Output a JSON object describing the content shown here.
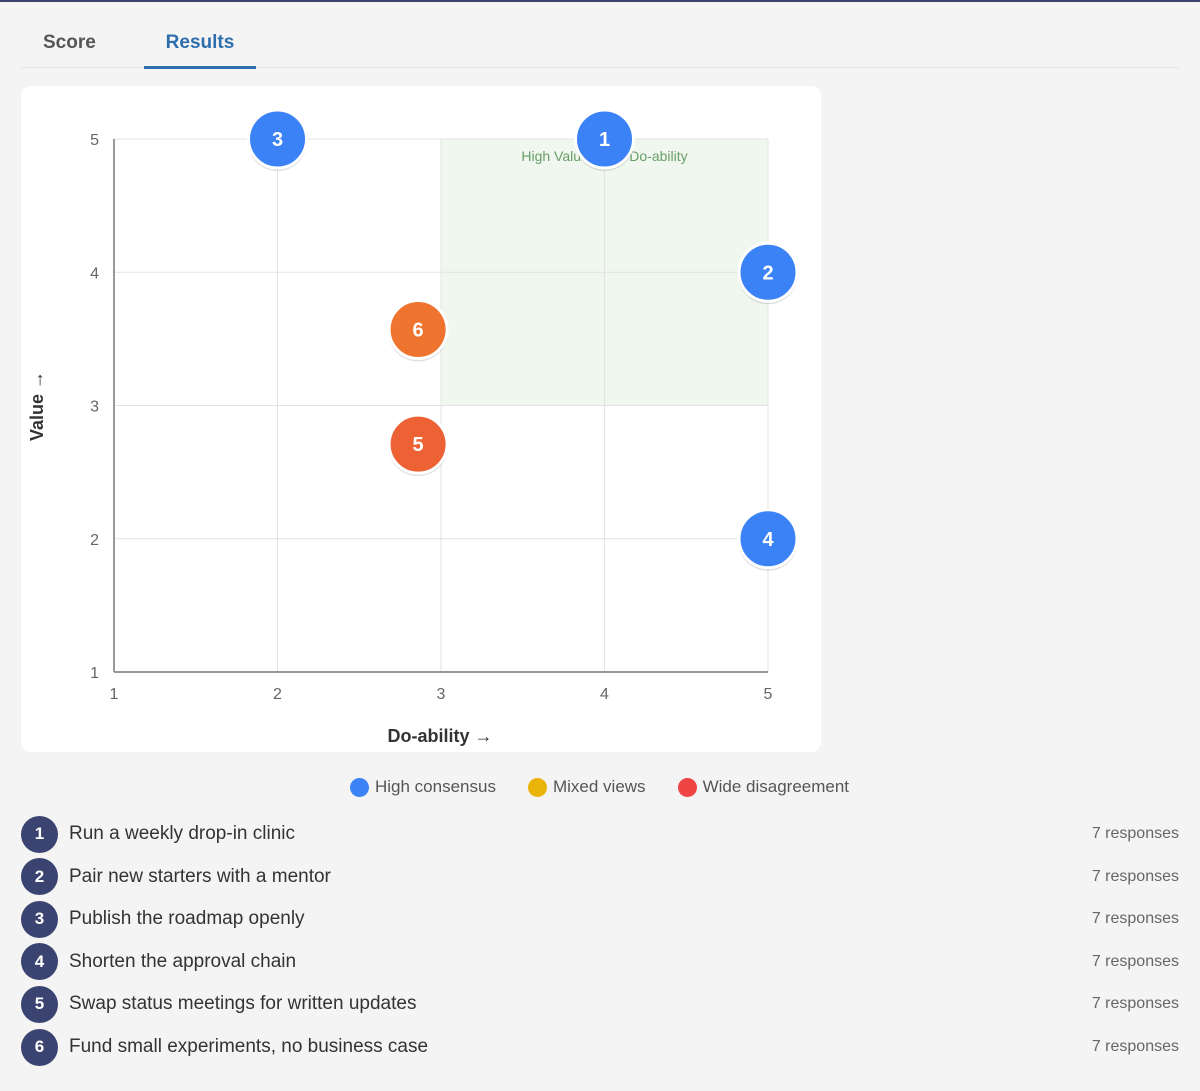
{
  "tabs": {
    "score": "Score",
    "results": "Results"
  },
  "chart_data": {
    "type": "scatter",
    "xlabel": "Do-ability →",
    "ylabel": "Value →",
    "xlim": [
      1,
      5
    ],
    "ylim": [
      1,
      5
    ],
    "xticks": [
      1,
      2,
      3,
      4,
      5
    ],
    "yticks": [
      1,
      2,
      3,
      4,
      5
    ],
    "grid": true,
    "highlight_region": {
      "label": "High Value, High Do-ability",
      "x": [
        3,
        5
      ],
      "y": [
        3,
        5
      ],
      "color": "#f0f7ef"
    },
    "points": [
      {
        "id": "1",
        "x": 4.0,
        "y": 5.0,
        "color": "#3b82f6"
      },
      {
        "id": "2",
        "x": 5.0,
        "y": 4.0,
        "color": "#3b82f6"
      },
      {
        "id": "3",
        "x": 2.0,
        "y": 5.0,
        "color": "#3b82f6"
      },
      {
        "id": "4",
        "x": 5.0,
        "y": 2.0,
        "color": "#3b82f6"
      },
      {
        "id": "5",
        "x": 2.86,
        "y": 2.71,
        "color": "#ed6235"
      },
      {
        "id": "6",
        "x": 2.86,
        "y": 3.57,
        "color": "#ee7430"
      }
    ]
  },
  "legend": [
    {
      "label": "High consensus",
      "color": "#3b82f6"
    },
    {
      "label": "Mixed views",
      "color": "#eab308"
    },
    {
      "label": "Wide disagreement",
      "color": "#ef4444"
    }
  ],
  "items": [
    {
      "num": "1",
      "label": "Run a weekly drop-in clinic",
      "responses": "7 responses"
    },
    {
      "num": "2",
      "label": "Pair new starters with a mentor",
      "responses": "7 responses"
    },
    {
      "num": "3",
      "label": "Publish the roadmap openly",
      "responses": "7 responses"
    },
    {
      "num": "4",
      "label": "Shorten the approval chain",
      "responses": "7 responses"
    },
    {
      "num": "5",
      "label": "Swap status meetings for written updates",
      "responses": "7 responses"
    },
    {
      "num": "6",
      "label": "Fund small experiments, no business case",
      "responses": "7 responses"
    }
  ]
}
